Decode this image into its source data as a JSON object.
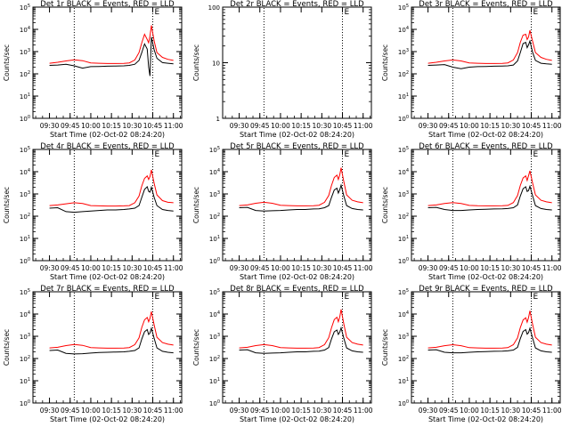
{
  "colors": {
    "events": "#000000",
    "lld": "#ff0000",
    "marker_line": "#000000"
  },
  "chart_data": [
    {
      "type": "line",
      "title": "Det 1r BLACK = Events, RED = LLD",
      "xlabel": "Start Time (02-Oct-02 08:24:20)",
      "ylabel": "Counts/sec",
      "x_ticks": [
        "09:30",
        "09:45",
        "10:00",
        "10:15",
        "10:30",
        "10:45",
        "11:00"
      ],
      "y_ticks": [
        "10^0",
        "10^1",
        "10^2",
        "10^3",
        "10^4",
        "10^5"
      ],
      "ylim": [
        1,
        100000
      ],
      "y_scale": "log",
      "marker_lines": [
        "09:48",
        "10:45"
      ],
      "marker_label": "E",
      "has_data": true,
      "x": [
        "09:30",
        "09:36",
        "09:42",
        "09:48",
        "09:54",
        "10:00",
        "10:06",
        "10:12",
        "10:18",
        "10:24",
        "10:28",
        "10:32",
        "10:35",
        "10:37",
        "10:39",
        "10:41",
        "10:42",
        "10:43",
        "10:44",
        "10:46",
        "10:48",
        "10:52",
        "10:56",
        "11:00"
      ],
      "series": [
        {
          "name": "Events",
          "values": [
            240,
            250,
            270,
            230,
            180,
            210,
            215,
            220,
            225,
            230,
            240,
            270,
            400,
            900,
            2200,
            1300,
            200,
            80,
            4500,
            1200,
            500,
            320,
            300,
            280
          ]
        },
        {
          "name": "LLD",
          "values": [
            300,
            330,
            380,
            430,
            390,
            310,
            300,
            290,
            290,
            295,
            310,
            420,
            900,
            2500,
            6000,
            3500,
            2500,
            5000,
            15000,
            3000,
            900,
            550,
            450,
            400
          ]
        }
      ]
    },
    {
      "type": "line",
      "title": "Det 2r BLACK = Events, RED = LLD",
      "xlabel": "Start Time (02-Oct-02 08:24:20)",
      "ylabel": "Counts/sec",
      "x_ticks": [
        "09:30",
        "09:45",
        "10:00",
        "10:15",
        "10:30",
        "10:45",
        "11:00"
      ],
      "y_ticks": [
        "1",
        "10",
        "100"
      ],
      "ylim": [
        1,
        100
      ],
      "y_scale": "log",
      "marker_lines": [
        "09:48",
        "10:45"
      ],
      "marker_label": "E",
      "has_data": false,
      "x": [],
      "series": []
    },
    {
      "type": "line",
      "title": "Det 3r BLACK = Events, RED = LLD",
      "xlabel": "Start Time (02-Oct-02 08:24:20)",
      "ylabel": "Counts/sec",
      "x_ticks": [
        "09:30",
        "09:45",
        "10:00",
        "10:15",
        "10:30",
        "10:45",
        "11:00"
      ],
      "y_ticks": [
        "10^0",
        "10^1",
        "10^2",
        "10^3",
        "10^4",
        "10^5"
      ],
      "ylim": [
        1,
        100000
      ],
      "y_scale": "log",
      "marker_lines": [
        "09:48",
        "10:45"
      ],
      "marker_label": "E",
      "has_data": true,
      "x": [
        "09:30",
        "09:36",
        "09:42",
        "09:48",
        "09:54",
        "10:00",
        "10:06",
        "10:12",
        "10:18",
        "10:24",
        "10:28",
        "10:32",
        "10:35",
        "10:37",
        "10:39",
        "10:41",
        "10:42",
        "10:43",
        "10:44",
        "10:46",
        "10:48",
        "10:52",
        "10:56",
        "11:00"
      ],
      "series": [
        {
          "name": "Events",
          "values": [
            240,
            250,
            260,
            200,
            170,
            200,
            210,
            215,
            220,
            225,
            230,
            250,
            380,
            900,
            2300,
            2600,
            1500,
            2000,
            3000,
            900,
            400,
            300,
            280,
            270
          ]
        },
        {
          "name": "LLD",
          "values": [
            300,
            330,
            380,
            420,
            380,
            310,
            300,
            290,
            290,
            295,
            310,
            420,
            900,
            2600,
            5500,
            6000,
            3500,
            4500,
            9000,
            2800,
            900,
            550,
            450,
            400
          ]
        }
      ]
    },
    {
      "type": "line",
      "title": "Det 4r BLACK = Events, RED = LLD",
      "xlabel": "Start Time (02-Oct-02 08:24:20)",
      "ylabel": "Counts/sec",
      "x_ticks": [
        "09:30",
        "09:45",
        "10:00",
        "10:15",
        "10:30",
        "10:45",
        "11:00"
      ],
      "y_ticks": [
        "10^0",
        "10^1",
        "10^2",
        "10^3",
        "10^4",
        "10^5"
      ],
      "ylim": [
        1,
        100000
      ],
      "y_scale": "log",
      "marker_lines": [
        "09:48",
        "10:45"
      ],
      "marker_label": "E",
      "has_data": true,
      "x": [
        "09:30",
        "09:36",
        "09:42",
        "09:48",
        "09:54",
        "10:00",
        "10:06",
        "10:12",
        "10:18",
        "10:24",
        "10:28",
        "10:32",
        "10:35",
        "10:37",
        "10:39",
        "10:41",
        "10:42",
        "10:43",
        "10:44",
        "10:46",
        "10:48",
        "10:52",
        "10:56",
        "11:00"
      ],
      "series": [
        {
          "name": "Events",
          "values": [
            230,
            240,
            160,
            150,
            160,
            170,
            180,
            190,
            190,
            200,
            210,
            230,
            300,
            700,
            1600,
            2100,
            1300,
            1200,
            2000,
            700,
            300,
            200,
            180,
            170
          ]
        },
        {
          "name": "LLD",
          "values": [
            300,
            320,
            360,
            400,
            370,
            300,
            290,
            285,
            285,
            290,
            300,
            400,
            800,
            2300,
            5000,
            6500,
            4500,
            6000,
            12000,
            3000,
            900,
            500,
            420,
            400
          ]
        }
      ]
    },
    {
      "type": "line",
      "title": "Det 5r BLACK = Events, RED = LLD",
      "xlabel": "Start Time (02-Oct-02 08:24:20)",
      "ylabel": "Counts/sec",
      "x_ticks": [
        "09:30",
        "09:45",
        "10:00",
        "10:15",
        "10:30",
        "10:45",
        "11:00"
      ],
      "y_ticks": [
        "10^0",
        "10^1",
        "10^2",
        "10^3",
        "10^4",
        "10^5"
      ],
      "ylim": [
        1,
        100000
      ],
      "y_scale": "log",
      "marker_lines": [
        "09:48",
        "10:45"
      ],
      "marker_label": "E",
      "has_data": true,
      "x": [
        "09:30",
        "09:36",
        "09:42",
        "09:48",
        "09:54",
        "10:00",
        "10:06",
        "10:12",
        "10:18",
        "10:24",
        "10:28",
        "10:32",
        "10:35",
        "10:37",
        "10:39",
        "10:41",
        "10:42",
        "10:43",
        "10:44",
        "10:46",
        "10:48",
        "10:52",
        "10:56",
        "11:00"
      ],
      "series": [
        {
          "name": "Events",
          "values": [
            240,
            250,
            180,
            170,
            175,
            180,
            190,
            200,
            200,
            210,
            215,
            240,
            300,
            700,
            1500,
            1800,
            1100,
            1500,
            2500,
            800,
            300,
            220,
            200,
            190
          ]
        },
        {
          "name": "LLD",
          "values": [
            300,
            320,
            380,
            420,
            380,
            310,
            300,
            290,
            290,
            295,
            310,
            420,
            850,
            2400,
            5500,
            7000,
            4500,
            7000,
            15000,
            3500,
            900,
            520,
            440,
            400
          ]
        }
      ]
    },
    {
      "type": "line",
      "title": "Det 6r BLACK = Events, RED = LLD",
      "xlabel": "Start Time (02-Oct-02 08:24:20)",
      "ylabel": "Counts/sec",
      "x_ticks": [
        "09:30",
        "09:45",
        "10:00",
        "10:15",
        "10:30",
        "10:45",
        "11:00"
      ],
      "y_ticks": [
        "10^0",
        "10^1",
        "10^2",
        "10^3",
        "10^4",
        "10^5"
      ],
      "ylim": [
        1,
        100000
      ],
      "y_scale": "log",
      "marker_lines": [
        "09:48",
        "10:45"
      ],
      "marker_label": "E",
      "has_data": true,
      "x": [
        "09:30",
        "09:36",
        "09:42",
        "09:48",
        "09:54",
        "10:00",
        "10:06",
        "10:12",
        "10:18",
        "10:24",
        "10:28",
        "10:32",
        "10:35",
        "10:37",
        "10:39",
        "10:41",
        "10:42",
        "10:43",
        "10:44",
        "10:46",
        "10:48",
        "10:52",
        "10:56",
        "11:00"
      ],
      "series": [
        {
          "name": "Events",
          "values": [
            240,
            250,
            200,
            180,
            180,
            190,
            200,
            205,
            210,
            215,
            220,
            240,
            320,
            800,
            1700,
            2100,
            1300,
            1400,
            2200,
            800,
            300,
            220,
            200,
            190
          ]
        },
        {
          "name": "LLD",
          "values": [
            300,
            320,
            370,
            410,
            370,
            305,
            295,
            290,
            290,
            295,
            305,
            410,
            850,
            2400,
            5200,
            6500,
            4000,
            6500,
            11000,
            3000,
            900,
            520,
            440,
            400
          ]
        }
      ]
    },
    {
      "type": "line",
      "title": "Det 7r BLACK = Events, RED = LLD",
      "xlabel": "Start Time (02-Oct-02 08:24:20)",
      "ylabel": "Counts/sec",
      "x_ticks": [
        "09:30",
        "09:45",
        "10:00",
        "10:15",
        "10:30",
        "10:45",
        "11:00"
      ],
      "y_ticks": [
        "10^0",
        "10^1",
        "10^2",
        "10^3",
        "10^4",
        "10^5"
      ],
      "ylim": [
        1,
        100000
      ],
      "y_scale": "log",
      "marker_lines": [
        "09:48",
        "10:45"
      ],
      "marker_label": "E",
      "has_data": true,
      "x": [
        "09:30",
        "09:36",
        "09:42",
        "09:48",
        "09:54",
        "10:00",
        "10:06",
        "10:12",
        "10:18",
        "10:24",
        "10:28",
        "10:32",
        "10:35",
        "10:37",
        "10:39",
        "10:41",
        "10:42",
        "10:43",
        "10:44",
        "10:46",
        "10:48",
        "10:52",
        "10:56",
        "11:00"
      ],
      "series": [
        {
          "name": "Events",
          "values": [
            230,
            240,
            170,
            160,
            165,
            175,
            185,
            190,
            195,
            200,
            210,
            230,
            300,
            750,
            1600,
            2000,
            1200,
            1400,
            2300,
            800,
            300,
            210,
            190,
            180
          ]
        },
        {
          "name": "LLD",
          "values": [
            300,
            320,
            380,
            430,
            390,
            310,
            300,
            290,
            290,
            295,
            310,
            420,
            850,
            2500,
            5500,
            7000,
            4500,
            6500,
            13000,
            3200,
            900,
            520,
            440,
            400
          ]
        }
      ]
    },
    {
      "type": "line",
      "title": "Det 8r BLACK = Events, RED = LLD",
      "xlabel": "Start Time (02-Oct-02 08:24:20)",
      "ylabel": "Counts/sec",
      "x_ticks": [
        "09:30",
        "09:45",
        "10:00",
        "10:15",
        "10:30",
        "10:45",
        "11:00"
      ],
      "y_ticks": [
        "10^0",
        "10^1",
        "10^2",
        "10^3",
        "10^4",
        "10^5"
      ],
      "ylim": [
        1,
        100000
      ],
      "y_scale": "log",
      "marker_lines": [
        "09:48",
        "10:45"
      ],
      "marker_label": "E",
      "has_data": true,
      "x": [
        "09:30",
        "09:36",
        "09:42",
        "09:48",
        "09:54",
        "10:00",
        "10:06",
        "10:12",
        "10:18",
        "10:24",
        "10:28",
        "10:32",
        "10:35",
        "10:37",
        "10:39",
        "10:41",
        "10:42",
        "10:43",
        "10:44",
        "10:46",
        "10:48",
        "10:52",
        "10:56",
        "11:00"
      ],
      "series": [
        {
          "name": "Events",
          "values": [
            240,
            250,
            180,
            170,
            175,
            180,
            190,
            200,
            200,
            210,
            215,
            240,
            310,
            750,
            1600,
            1900,
            1200,
            1500,
            2400,
            800,
            300,
            220,
            200,
            190
          ]
        },
        {
          "name": "LLD",
          "values": [
            300,
            320,
            380,
            420,
            380,
            310,
            300,
            290,
            290,
            295,
            310,
            420,
            860,
            2400,
            5600,
            7200,
            4500,
            7200,
            16000,
            3500,
            900,
            520,
            440,
            400
          ]
        }
      ]
    },
    {
      "type": "line",
      "title": "Det 9r BLACK = Events, RED = LLD",
      "xlabel": "Start Time (02-Oct-02 08:24:20)",
      "ylabel": "Counts/sec",
      "x_ticks": [
        "09:30",
        "09:45",
        "10:00",
        "10:15",
        "10:30",
        "10:45",
        "11:00"
      ],
      "y_ticks": [
        "10^0",
        "10^1",
        "10^2",
        "10^3",
        "10^4",
        "10^5"
      ],
      "ylim": [
        1,
        100000
      ],
      "y_scale": "log",
      "marker_lines": [
        "09:48",
        "10:45"
      ],
      "marker_label": "E",
      "has_data": true,
      "x": [
        "09:30",
        "09:36",
        "09:42",
        "09:48",
        "09:54",
        "10:00",
        "10:06",
        "10:12",
        "10:18",
        "10:24",
        "10:28",
        "10:32",
        "10:35",
        "10:37",
        "10:39",
        "10:41",
        "10:42",
        "10:43",
        "10:44",
        "10:46",
        "10:48",
        "10:52",
        "10:56",
        "11:00"
      ],
      "series": [
        {
          "name": "Events",
          "values": [
            240,
            250,
            190,
            180,
            180,
            190,
            200,
            205,
            210,
            215,
            220,
            240,
            320,
            780,
            1650,
            2000,
            1250,
            1450,
            2300,
            800,
            300,
            220,
            200,
            190
          ]
        },
        {
          "name": "LLD",
          "values": [
            300,
            320,
            375,
            415,
            375,
            308,
            298,
            290,
            290,
            295,
            308,
            415,
            850,
            2450,
            5400,
            6800,
            4300,
            6800,
            14000,
            3300,
            900,
            520,
            440,
            400
          ]
        }
      ]
    }
  ]
}
